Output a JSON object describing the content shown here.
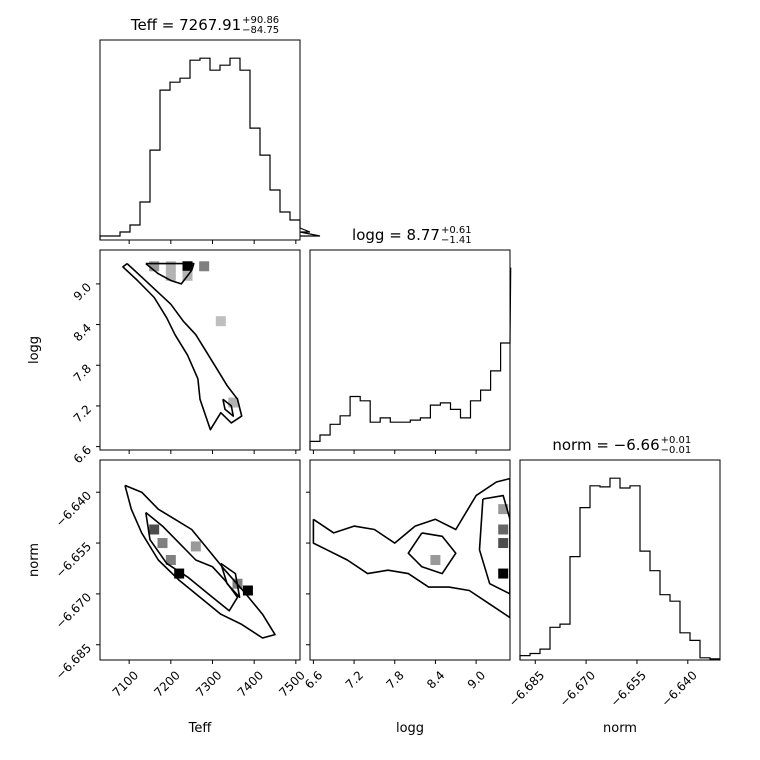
{
  "chart_data": {
    "type": "corner",
    "parameters": [
      {
        "name": "Teff",
        "label": "Teff",
        "range": [
          7030,
          7510
        ],
        "ticks": [
          7100,
          7200,
          7300,
          7400,
          7500
        ],
        "tick_labels": [
          "7100",
          "7200",
          "7300",
          "7400",
          "7500"
        ]
      },
      {
        "name": "logg",
        "label": "logg",
        "range": [
          6.55,
          9.5
        ],
        "ticks": [
          6.6,
          7.2,
          7.8,
          8.4,
          9.0
        ],
        "tick_labels": [
          "6.6",
          "7.2",
          "7.8",
          "8.4",
          "9.0"
        ]
      },
      {
        "name": "norm",
        "label": "norm",
        "range": [
          -6.6895,
          -6.6305
        ],
        "ticks": [
          -6.685,
          -6.67,
          -6.655,
          -6.64
        ],
        "tick_labels": [
          "−6.685",
          "−6.670",
          "−6.655",
          "−6.640"
        ]
      }
    ],
    "titles": [
      {
        "main": "Teff = 7267.91",
        "sup": "+90.86",
        "sub": "−84.75"
      },
      {
        "main": "logg = 8.77",
        "sup": "+0.61",
        "sub": "−1.41"
      },
      {
        "main": "norm = −6.66",
        "sup": "+0.01",
        "sub": "−0.01"
      }
    ],
    "histograms": [
      {
        "param": "Teff",
        "bin_edges_start": 7030,
        "bin_width": 24,
        "counts": [
          4,
          4,
          8,
          15,
          38,
          90,
          150,
          158,
          162,
          180,
          182,
          170,
          175,
          182,
          170,
          112,
          85,
          50,
          28,
          20,
          12,
          8,
          4
        ]
      },
      {
        "param": "logg",
        "bin_edges_start": 6.55,
        "bin_width": 0.148,
        "counts": [
          4,
          7,
          12,
          16,
          25,
          23,
          13,
          15,
          13,
          13,
          14,
          15,
          21,
          22,
          19,
          15,
          23,
          28,
          37,
          50,
          85
        ]
      },
      {
        "param": "norm",
        "bin_edges_start": -6.6895,
        "bin_width": 0.00295,
        "counts": [
          4,
          6,
          10,
          30,
          33,
          95,
          140,
          160,
          159,
          167,
          158,
          160,
          100,
          82,
          60,
          54,
          25,
          18,
          2,
          1
        ]
      }
    ],
    "contours": [
      {
        "x": "Teff",
        "y": "logg",
        "levels": [
          [
            [
              7095,
              9.3
            ],
            [
              7130,
              9.1
            ],
            [
              7165,
              8.9
            ],
            [
              7200,
              8.7
            ],
            [
              7230,
              8.45
            ],
            [
              7260,
              8.25
            ],
            [
              7285,
              8.0
            ],
            [
              7310,
              7.75
            ],
            [
              7335,
              7.5
            ],
            [
              7360,
              7.3
            ],
            [
              7370,
              7.05
            ],
            [
              7345,
              6.95
            ],
            [
              7320,
              7.1
            ],
            [
              7295,
              6.85
            ],
            [
              7270,
              7.3
            ],
            [
              7265,
              7.6
            ],
            [
              7240,
              7.95
            ],
            [
              7210,
              8.25
            ],
            [
              7190,
              8.5
            ],
            [
              7160,
              8.8
            ],
            [
              7120,
              9.05
            ],
            [
              7085,
              9.25
            ],
            [
              7095,
              9.3
            ]
          ],
          [
            [
              7140,
              9.3
            ],
            [
              7170,
              9.15
            ],
            [
              7200,
              9.05
            ],
            [
              7225,
              9.0
            ],
            [
              7250,
              9.2
            ],
            [
              7255,
              9.3
            ],
            [
              7140,
              9.3
            ]
          ],
          [
            [
              7325,
              7.3
            ],
            [
              7345,
              7.2
            ],
            [
              7350,
              7.05
            ],
            [
              7330,
              7.15
            ],
            [
              7325,
              7.3
            ]
          ]
        ]
      },
      {
        "x": "Teff",
        "y": "norm",
        "levels": [
          [
            [
              7090,
              -6.638
            ],
            [
              7130,
              -6.64
            ],
            [
              7170,
              -6.645
            ],
            [
              7210,
              -6.648
            ],
            [
              7250,
              -6.651
            ],
            [
              7290,
              -6.657
            ],
            [
              7330,
              -6.663
            ],
            [
              7380,
              -6.67
            ],
            [
              7420,
              -6.676
            ],
            [
              7450,
              -6.682
            ],
            [
              7420,
              -6.683
            ],
            [
              7370,
              -6.679
            ],
            [
              7320,
              -6.676
            ],
            [
              7270,
              -6.671
            ],
            [
              7220,
              -6.666
            ],
            [
              7170,
              -6.66
            ],
            [
              7130,
              -6.652
            ],
            [
              7105,
              -6.645
            ],
            [
              7090,
              -6.638
            ]
          ],
          [
            [
              7140,
              -6.646
            ],
            [
              7180,
              -6.65
            ],
            [
              7220,
              -6.655
            ],
            [
              7260,
              -6.66
            ],
            [
              7300,
              -6.662
            ],
            [
              7330,
              -6.666
            ],
            [
              7360,
              -6.671
            ],
            [
              7340,
              -6.675
            ],
            [
              7290,
              -6.67
            ],
            [
              7240,
              -6.665
            ],
            [
              7190,
              -6.661
            ],
            [
              7150,
              -6.654
            ],
            [
              7140,
              -6.646
            ]
          ],
          [
            [
              7320,
              -6.661
            ],
            [
              7355,
              -6.664
            ],
            [
              7365,
              -6.671
            ],
            [
              7335,
              -6.667
            ],
            [
              7320,
              -6.661
            ]
          ]
        ]
      },
      {
        "x": "logg",
        "y": "norm",
        "levels": [
          [
            [
              6.6,
              -6.648
            ],
            [
              6.9,
              -6.652
            ],
            [
              7.2,
              -6.65
            ],
            [
              7.5,
              -6.651
            ],
            [
              7.8,
              -6.655
            ],
            [
              8.1,
              -6.65
            ],
            [
              8.4,
              -6.648
            ],
            [
              8.7,
              -6.651
            ],
            [
              9.0,
              -6.641
            ],
            [
              9.3,
              -6.637
            ],
            [
              9.5,
              -6.636
            ],
            [
              9.5,
              -6.677
            ],
            [
              9.2,
              -6.673
            ],
            [
              8.9,
              -6.669
            ],
            [
              8.6,
              -6.668
            ],
            [
              8.3,
              -6.668
            ],
            [
              8.0,
              -6.664
            ],
            [
              7.7,
              -6.663
            ],
            [
              7.4,
              -6.664
            ],
            [
              7.1,
              -6.66
            ],
            [
              6.8,
              -6.657
            ],
            [
              6.6,
              -6.655
            ],
            [
              6.6,
              -6.648
            ]
          ],
          [
            [
              8.2,
              -6.652
            ],
            [
              8.5,
              -6.653
            ],
            [
              8.7,
              -6.658
            ],
            [
              8.5,
              -6.664
            ],
            [
              8.2,
              -6.662
            ],
            [
              8.0,
              -6.658
            ],
            [
              8.2,
              -6.652
            ]
          ],
          [
            [
              9.1,
              -6.642
            ],
            [
              9.4,
              -6.641
            ],
            [
              9.5,
              -6.648
            ],
            [
              9.5,
              -6.67
            ],
            [
              9.2,
              -6.667
            ],
            [
              9.05,
              -6.657
            ],
            [
              9.1,
              -6.642
            ]
          ]
        ]
      }
    ],
    "density_cells": [
      {
        "x": "Teff",
        "y": "logg",
        "cells": [
          [
            7160,
            9.26,
            0.4
          ],
          [
            7200,
            9.26,
            0.3
          ],
          [
            7240,
            9.26,
            1.0
          ],
          [
            7280,
            9.26,
            0.5
          ],
          [
            7200,
            9.12,
            0.3
          ],
          [
            7240,
            9.12,
            0.3
          ],
          [
            7320,
            8.45,
            0.25
          ],
          [
            7350,
            7.25,
            0.3
          ]
        ]
      },
      {
        "x": "Teff",
        "y": "norm",
        "cells": [
          [
            7160,
            -6.651,
            0.7
          ],
          [
            7180,
            -6.655,
            0.5
          ],
          [
            7200,
            -6.66,
            0.5
          ],
          [
            7220,
            -6.664,
            1.0
          ],
          [
            7360,
            -6.667,
            0.5
          ],
          [
            7385,
            -6.669,
            1.0
          ],
          [
            7260,
            -6.656,
            0.4
          ]
        ]
      },
      {
        "x": "logg",
        "y": "norm",
        "cells": [
          [
            9.4,
            -6.651,
            0.6
          ],
          [
            9.4,
            -6.655,
            0.7
          ],
          [
            9.4,
            -6.664,
            1.0
          ],
          [
            8.4,
            -6.66,
            0.4
          ],
          [
            9.4,
            -6.645,
            0.4
          ]
        ]
      }
    ]
  }
}
